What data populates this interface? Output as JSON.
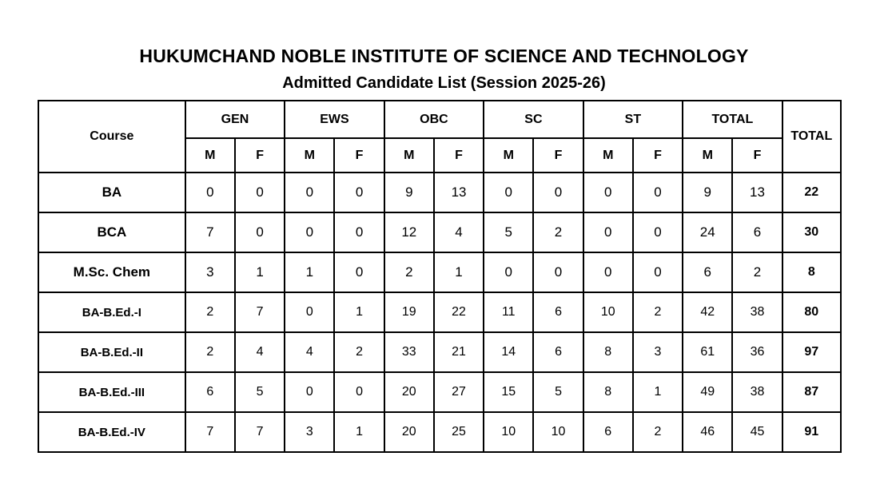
{
  "header": {
    "title": "HUKUMCHAND NOBLE INSTITUTE OF SCIENCE AND TECHNOLOGY",
    "subtitle": "Admitted Candidate List (Session 2025-26)"
  },
  "table": {
    "course_header": "Course",
    "grand_total_header": "TOTAL",
    "category_groups": [
      "GEN",
      "EWS",
      "OBC",
      "SC",
      "ST",
      "TOTAL"
    ],
    "gender_subheaders": [
      "M",
      "F"
    ],
    "rows": [
      {
        "course": "BA",
        "values": [
          0,
          0,
          0,
          0,
          9,
          13,
          0,
          0,
          0,
          0,
          9,
          13
        ],
        "total": 22
      },
      {
        "course": "BCA",
        "values": [
          7,
          0,
          0,
          0,
          12,
          4,
          5,
          2,
          0,
          0,
          24,
          6
        ],
        "total": 30
      },
      {
        "course": "M.Sc. Chem",
        "values": [
          3,
          1,
          1,
          0,
          2,
          1,
          0,
          0,
          0,
          0,
          6,
          2
        ],
        "total": 8
      },
      {
        "course": "BA-B.Ed.-I",
        "values": [
          2,
          7,
          0,
          1,
          19,
          22,
          11,
          6,
          10,
          2,
          42,
          38
        ],
        "total": 80
      },
      {
        "course": "BA-B.Ed.-II",
        "values": [
          2,
          4,
          4,
          2,
          33,
          21,
          14,
          6,
          8,
          3,
          61,
          36
        ],
        "total": 97
      },
      {
        "course": "BA-B.Ed.-III",
        "values": [
          6,
          5,
          0,
          0,
          20,
          27,
          15,
          5,
          8,
          1,
          49,
          38
        ],
        "total": 87
      },
      {
        "course": "BA-B.Ed.-IV",
        "values": [
          7,
          7,
          3,
          1,
          20,
          25,
          10,
          10,
          6,
          2,
          46,
          45
        ],
        "total": 91
      }
    ]
  },
  "colors": {
    "background": "#ffffff",
    "text": "#000000",
    "border": "#000000"
  }
}
